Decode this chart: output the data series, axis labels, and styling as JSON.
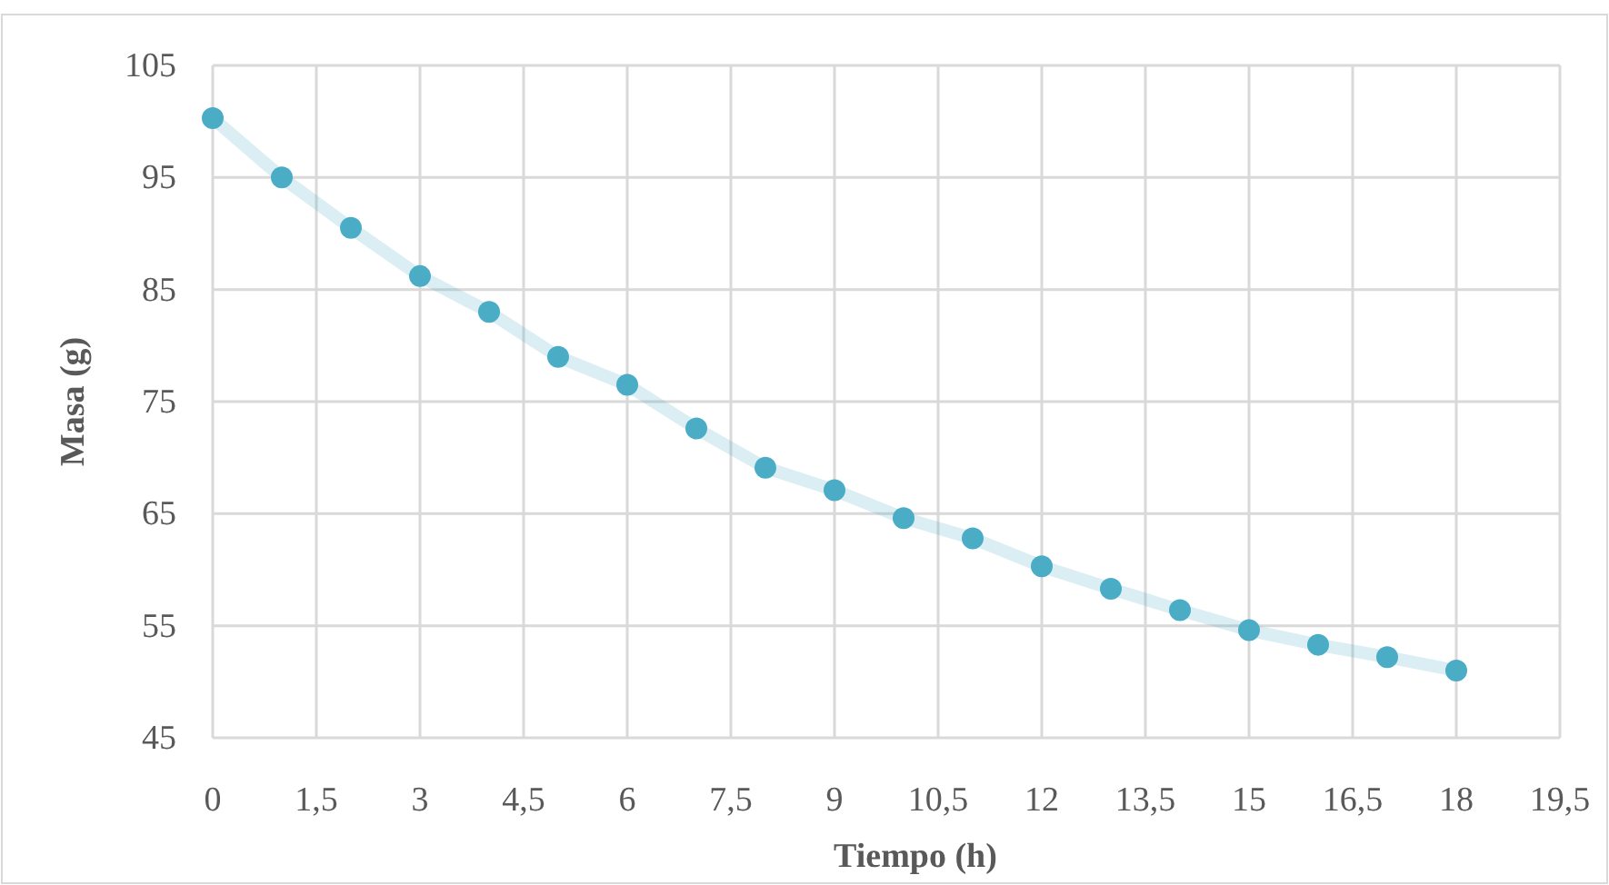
{
  "chart_data": {
    "type": "line",
    "xlabel": "Tiempo (h)",
    "ylabel": "Masa (g)",
    "x": [
      0,
      1,
      2,
      3,
      4,
      5,
      6,
      7,
      8,
      9,
      10,
      11,
      12,
      13,
      14,
      15,
      16,
      17,
      18
    ],
    "series": [
      {
        "color": "#4bacc6",
        "values": [
          100.3,
          95,
          90.5,
          86.2,
          83,
          79,
          76.5,
          72.6,
          69.1,
          67.1,
          64.6,
          62.8,
          60.3,
          58.3,
          56.4,
          54.6,
          53.3,
          52.2,
          51.0
        ]
      }
    ],
    "xlim": [
      0,
      19.5
    ],
    "xticks": [
      0,
      {
        "value": 1.5,
        "label": "1,5"
      },
      3,
      {
        "value": 4.5,
        "label": "4,5"
      },
      6,
      {
        "value": 7.5,
        "label": "7,5"
      },
      9,
      {
        "value": 10.5,
        "label": "10,5"
      },
      12,
      {
        "value": 13.5,
        "label": "13,5"
      },
      15,
      {
        "value": 16.5,
        "label": "16,5"
      },
      18,
      {
        "value": 19.5,
        "label": "19,5"
      }
    ],
    "ylim": [
      45,
      105
    ],
    "yticks": [
      45,
      55,
      65,
      75,
      85,
      95,
      105
    ],
    "grid": true,
    "marker": "circle",
    "line_style": "solid"
  }
}
